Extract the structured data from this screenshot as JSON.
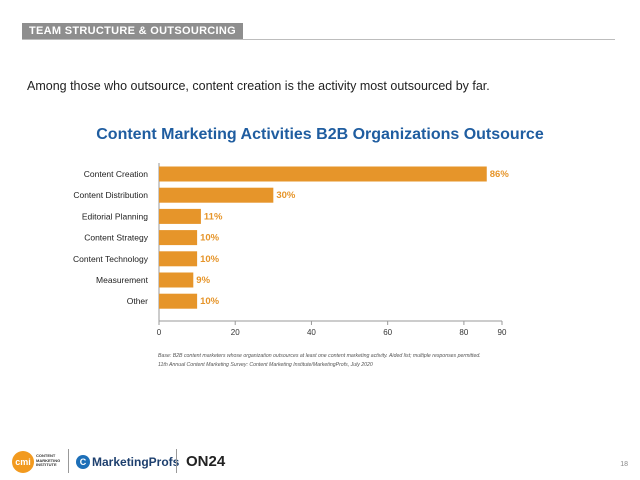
{
  "section": {
    "label": "TEAM STRUCTURE & OUTSOURCING"
  },
  "intro": "Among those who outsource, content creation is the activity most outsourced by far.",
  "chart_data": {
    "type": "bar",
    "orientation": "horizontal",
    "title": "Content Marketing Activities B2B Organizations Outsource",
    "categories": [
      "Content Creation",
      "Content Distribution",
      "Editorial Planning",
      "Content Strategy",
      "Content Technology",
      "Measurement",
      "Other"
    ],
    "values": [
      86,
      30,
      11,
      10,
      10,
      9,
      10
    ],
    "value_labels": [
      "86%",
      "30%",
      "11%",
      "10%",
      "10%",
      "9%",
      "10%"
    ],
    "xlim": [
      0,
      90
    ],
    "xticks": [
      0,
      20,
      40,
      60,
      80,
      90
    ],
    "xlabel": "",
    "ylabel": "",
    "color": "#e6952a",
    "grid": false
  },
  "footnote": {
    "line1": "Base: B2B content marketers whose organization outsources at least one content marketing activity. Aided list; multiple responses permitted.",
    "line2": "11th Annual Content Marketing Survey: Content Marketing Institute/MarketingProfs, July 2020"
  },
  "logos": {
    "cmi_mark": "cmi",
    "cmi_text": "CONTENT MARKETING INSTITUTE",
    "mp_mark": "C",
    "mp_text": "MarketingProfs",
    "on24_text": "ON24"
  },
  "page_number": "18"
}
